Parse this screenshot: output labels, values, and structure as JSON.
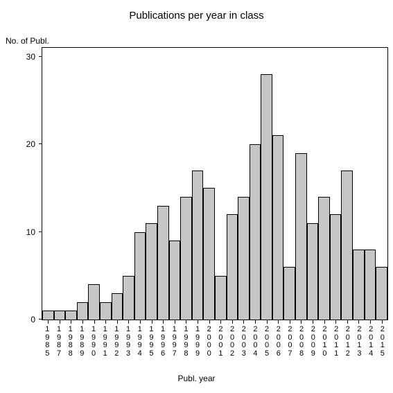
{
  "chart": {
    "type": "bar",
    "title": "Publications per year in class",
    "title_fontsize": 15,
    "y_axis_title": "No. of Publ.",
    "x_axis_title": "Publ. year",
    "label_fontsize": 12,
    "background_color": "#ffffff",
    "bar_fill": "#c6c6c6",
    "bar_border": "#000000",
    "axis_color": "#000000",
    "ylim": [
      0,
      31
    ],
    "yticks": [
      0,
      10,
      20,
      30
    ],
    "categories": [
      "1985",
      "1987",
      "1988",
      "1989",
      "1990",
      "1991",
      "1992",
      "1993",
      "1994",
      "1995",
      "1996",
      "1997",
      "1998",
      "1999",
      "2000",
      "2001",
      "2002",
      "2003",
      "2004",
      "2005",
      "2006",
      "2007",
      "2008",
      "2009",
      "2010",
      "2011",
      "2012",
      "2013",
      "2014",
      "2015"
    ],
    "values": [
      1,
      1,
      1,
      2,
      4,
      2,
      3,
      5,
      10,
      11,
      13,
      9,
      14,
      17,
      15,
      5,
      12,
      14,
      20,
      28,
      21,
      6,
      19,
      11,
      14,
      12,
      17,
      8,
      8,
      6
    ]
  }
}
